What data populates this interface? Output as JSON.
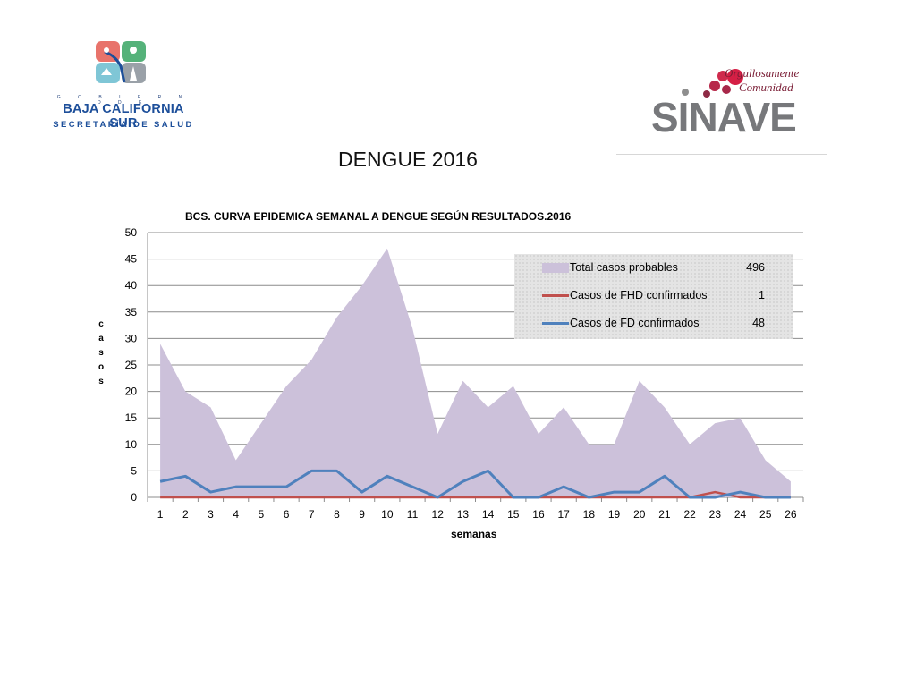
{
  "slide": {
    "title": "DENGUE 2016"
  },
  "logos": {
    "bcs": {
      "gobierno": "G O B I E R N O  D E",
      "name": "BAJA CALIFORNIA SUR",
      "dept": "SECRETARÍA DE SALUD"
    },
    "sinave": {
      "word": "SINAVE",
      "tag_line1": "Orgullosamente",
      "tag_line2": "Comunidad"
    }
  },
  "chart_data": {
    "type": "area",
    "title": "BCS. CURVA EPIDEMICA SEMANAL  A DENGUE SEGÚN RESULTADOS.2016",
    "xlabel": "semanas",
    "ylabel": "casos",
    "ylabel_letters": [
      "c",
      "a",
      "s",
      "o",
      "s"
    ],
    "ylim": [
      0,
      50
    ],
    "yticks": [
      0,
      5,
      10,
      15,
      20,
      25,
      30,
      35,
      40,
      45,
      50
    ],
    "grid": true,
    "legend_position": "top-right",
    "categories": [
      1,
      2,
      3,
      4,
      5,
      6,
      7,
      8,
      9,
      10,
      11,
      12,
      13,
      14,
      15,
      16,
      17,
      18,
      19,
      20,
      21,
      22,
      23,
      24,
      25,
      26
    ],
    "series": [
      {
        "name": "Total casos probables",
        "total": "496",
        "kind": "area",
        "color": "#ccc1da",
        "values": [
          29,
          20,
          17,
          7,
          14,
          21,
          26,
          34,
          40,
          47,
          32,
          12,
          22,
          17,
          21,
          12,
          17,
          10,
          10,
          22,
          17,
          10,
          14,
          15,
          7,
          3
        ]
      },
      {
        "name": "Casos de FHD confirmados",
        "total": "1",
        "kind": "line",
        "color": "#c0504d",
        "values": [
          0,
          0,
          0,
          0,
          0,
          0,
          0,
          0,
          0,
          0,
          0,
          0,
          0,
          0,
          0,
          0,
          0,
          0,
          0,
          0,
          0,
          0,
          1,
          0,
          0,
          0
        ]
      },
      {
        "name": "Casos de FD confirmados",
        "total": "48",
        "kind": "line",
        "color": "#4f81bd",
        "values": [
          3,
          4,
          1,
          2,
          2,
          2,
          5,
          5,
          1,
          4,
          2,
          0,
          3,
          5,
          0,
          0,
          2,
          0,
          1,
          1,
          4,
          0,
          0,
          1,
          0,
          0
        ]
      }
    ]
  }
}
